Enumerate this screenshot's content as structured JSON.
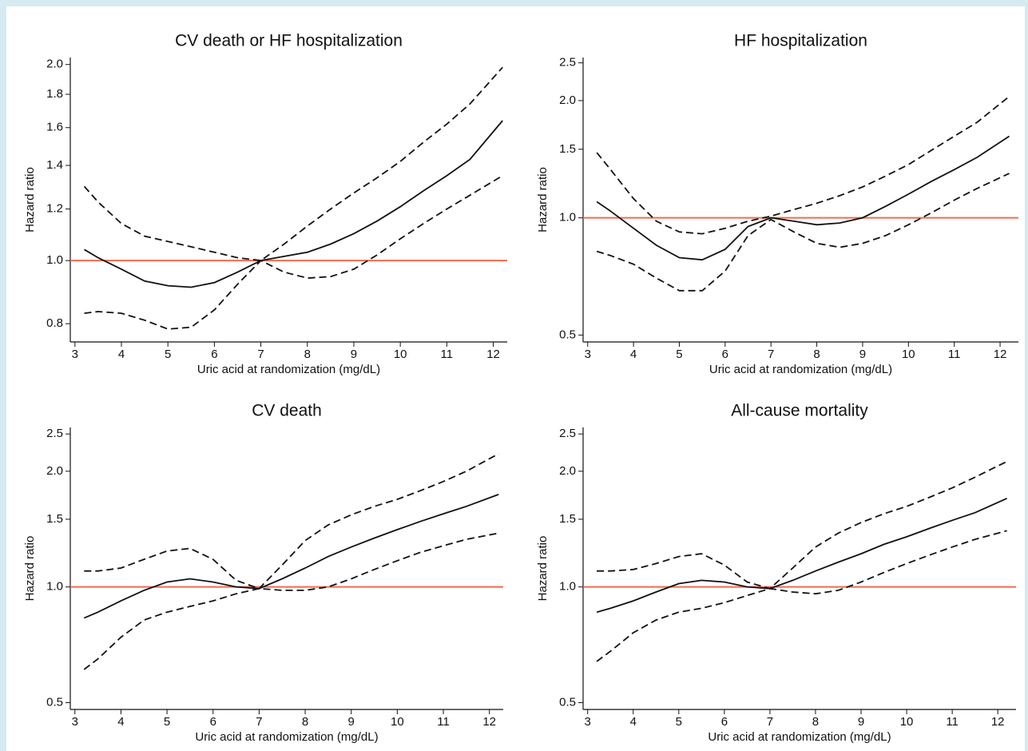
{
  "chart_data": [
    {
      "type": "line",
      "title": "CV death or HF hospitalization",
      "x_label": "Uric acid at randomization (mg/dL)",
      "y_label": "Hazard ratio",
      "log_y": true,
      "xlim": [
        2.9,
        12.3
      ],
      "ylim": [
        0.75,
        2.05
      ],
      "xticks": [
        3,
        4,
        5,
        6,
        7,
        8,
        9,
        10,
        11,
        12
      ],
      "yticks": [
        0.8,
        {
          "value": 1,
          "label": "1.0"
        },
        1.2,
        1.4,
        1.6,
        1.8,
        {
          "value": 2,
          "label": "2.0"
        }
      ],
      "reference_value": 1,
      "reference_color": "#f26b4f",
      "x": [
        3.2,
        3.5,
        4,
        4.5,
        5,
        5.5,
        6,
        6.5,
        7,
        7.5,
        8,
        8.5,
        9,
        9.5,
        10,
        10.5,
        11,
        11.5,
        12.2
      ],
      "series": [
        {
          "color": "#111111",
          "dashed": false,
          "values": [
            1.04,
            1.01,
            0.97,
            0.93,
            0.915,
            0.91,
            0.925,
            0.96,
            1.0,
            1.015,
            1.03,
            1.06,
            1.1,
            1.15,
            1.21,
            1.28,
            1.35,
            1.43,
            1.64
          ]
        },
        {
          "color": "#111111",
          "dashed": true,
          "values": [
            1.3,
            1.23,
            1.14,
            1.09,
            1.07,
            1.05,
            1.03,
            1.01,
            1.0,
            1.06,
            1.13,
            1.2,
            1.27,
            1.34,
            1.42,
            1.52,
            1.62,
            1.74,
            1.98
          ]
        },
        {
          "color": "#111111",
          "dashed": true,
          "values": [
            0.83,
            0.835,
            0.83,
            0.81,
            0.785,
            0.79,
            0.84,
            0.92,
            1.0,
            0.96,
            0.94,
            0.945,
            0.97,
            1.02,
            1.08,
            1.14,
            1.2,
            1.26,
            1.35
          ]
        }
      ]
    },
    {
      "type": "line",
      "title": "HF hospitalization",
      "x_label": "Uric acid at randomization (mg/dL)",
      "y_label": "Hazard ratio",
      "log_y": true,
      "xlim": [
        2.9,
        12.4
      ],
      "ylim": [
        0.48,
        2.58
      ],
      "xticks": [
        3,
        4,
        5,
        6,
        7,
        8,
        9,
        10,
        11,
        12
      ],
      "yticks": [
        0.5,
        {
          "value": 1,
          "label": "1.0"
        },
        1.5,
        {
          "value": 2,
          "label": "2.0"
        },
        2.5
      ],
      "reference_value": 1,
      "reference_color": "#f26b4f",
      "x": [
        3.2,
        3.5,
        4,
        4.5,
        5,
        5.5,
        6,
        6.5,
        7,
        7.5,
        8,
        8.5,
        9,
        9.5,
        10,
        10.5,
        11,
        11.5,
        12.2
      ],
      "series": [
        {
          "color": "#111111",
          "dashed": false,
          "values": [
            1.1,
            1.04,
            0.94,
            0.85,
            0.79,
            0.78,
            0.83,
            0.95,
            1.0,
            0.98,
            0.96,
            0.97,
            1.0,
            1.07,
            1.15,
            1.24,
            1.33,
            1.43,
            1.62
          ]
        },
        {
          "color": "#111111",
          "dashed": true,
          "values": [
            1.47,
            1.33,
            1.12,
            0.98,
            0.92,
            0.91,
            0.94,
            0.98,
            1.01,
            1.05,
            1.09,
            1.14,
            1.2,
            1.28,
            1.37,
            1.49,
            1.62,
            1.76,
            2.05
          ]
        },
        {
          "color": "#111111",
          "dashed": true,
          "values": [
            0.82,
            0.8,
            0.76,
            0.7,
            0.65,
            0.65,
            0.73,
            0.9,
            0.99,
            0.92,
            0.86,
            0.84,
            0.86,
            0.9,
            0.96,
            1.03,
            1.11,
            1.19,
            1.3
          ]
        }
      ]
    },
    {
      "type": "line",
      "title": "CV death",
      "x_label": "Uric acid at randomization (mg/dL)",
      "y_label": "Hazard ratio",
      "log_y": true,
      "xlim": [
        2.9,
        12.3
      ],
      "ylim": [
        0.48,
        2.6
      ],
      "xticks": [
        3,
        4,
        5,
        6,
        7,
        8,
        9,
        10,
        11,
        12
      ],
      "yticks": [
        0.5,
        {
          "value": 1,
          "label": "1.0"
        },
        1.5,
        {
          "value": 2,
          "label": "2.0"
        },
        2.5
      ],
      "reference_value": 1,
      "reference_color": "#f26b4f",
      "x": [
        3.2,
        3.5,
        4,
        4.5,
        5,
        5.5,
        6,
        6.5,
        7,
        7.5,
        8,
        8.5,
        9,
        9.5,
        10,
        10.5,
        11,
        11.5,
        12.2
      ],
      "series": [
        {
          "color": "#111111",
          "dashed": false,
          "values": [
            0.83,
            0.86,
            0.92,
            0.98,
            1.03,
            1.05,
            1.03,
            1.0,
            0.99,
            1.05,
            1.12,
            1.2,
            1.27,
            1.34,
            1.41,
            1.48,
            1.55,
            1.62,
            1.74
          ]
        },
        {
          "color": "#111111",
          "dashed": true,
          "values": [
            1.1,
            1.1,
            1.12,
            1.18,
            1.24,
            1.26,
            1.18,
            1.04,
            0.99,
            1.14,
            1.32,
            1.45,
            1.54,
            1.62,
            1.69,
            1.78,
            1.88,
            2.0,
            2.22
          ]
        },
        {
          "color": "#111111",
          "dashed": true,
          "values": [
            0.61,
            0.65,
            0.74,
            0.82,
            0.86,
            0.89,
            0.92,
            0.96,
            0.99,
            0.98,
            0.98,
            1.0,
            1.05,
            1.11,
            1.17,
            1.23,
            1.28,
            1.33,
            1.38
          ]
        }
      ]
    },
    {
      "type": "line",
      "title": "All-cause mortality",
      "x_label": "Uric acid at randomization (mg/dL)",
      "y_label": "Hazard ratio",
      "log_y": true,
      "xlim": [
        2.9,
        12.4
      ],
      "ylim": [
        0.48,
        2.6
      ],
      "xticks": [
        3,
        4,
        5,
        6,
        7,
        8,
        9,
        10,
        11,
        12
      ],
      "yticks": [
        0.5,
        {
          "value": 1,
          "label": "1.0"
        },
        1.5,
        {
          "value": 2,
          "label": "2.0"
        },
        2.5
      ],
      "reference_value": 1,
      "reference_color": "#f26b4f",
      "x": [
        3.2,
        3.5,
        4,
        4.5,
        5,
        5.5,
        6,
        6.5,
        7,
        7.5,
        8,
        8.5,
        9,
        9.5,
        10,
        10.5,
        11,
        11.5,
        12.2
      ],
      "series": [
        {
          "color": "#111111",
          "dashed": false,
          "values": [
            0.86,
            0.88,
            0.92,
            0.97,
            1.02,
            1.04,
            1.03,
            1.0,
            0.99,
            1.04,
            1.1,
            1.16,
            1.22,
            1.29,
            1.35,
            1.42,
            1.49,
            1.56,
            1.7
          ]
        },
        {
          "color": "#111111",
          "dashed": true,
          "values": [
            1.1,
            1.1,
            1.11,
            1.15,
            1.2,
            1.22,
            1.14,
            1.03,
            0.99,
            1.12,
            1.27,
            1.38,
            1.47,
            1.55,
            1.62,
            1.71,
            1.81,
            1.93,
            2.12
          ]
        },
        {
          "color": "#111111",
          "dashed": true,
          "values": [
            0.64,
            0.68,
            0.76,
            0.82,
            0.86,
            0.88,
            0.91,
            0.95,
            0.99,
            0.97,
            0.96,
            0.98,
            1.03,
            1.09,
            1.15,
            1.21,
            1.27,
            1.33,
            1.4
          ]
        }
      ]
    }
  ]
}
